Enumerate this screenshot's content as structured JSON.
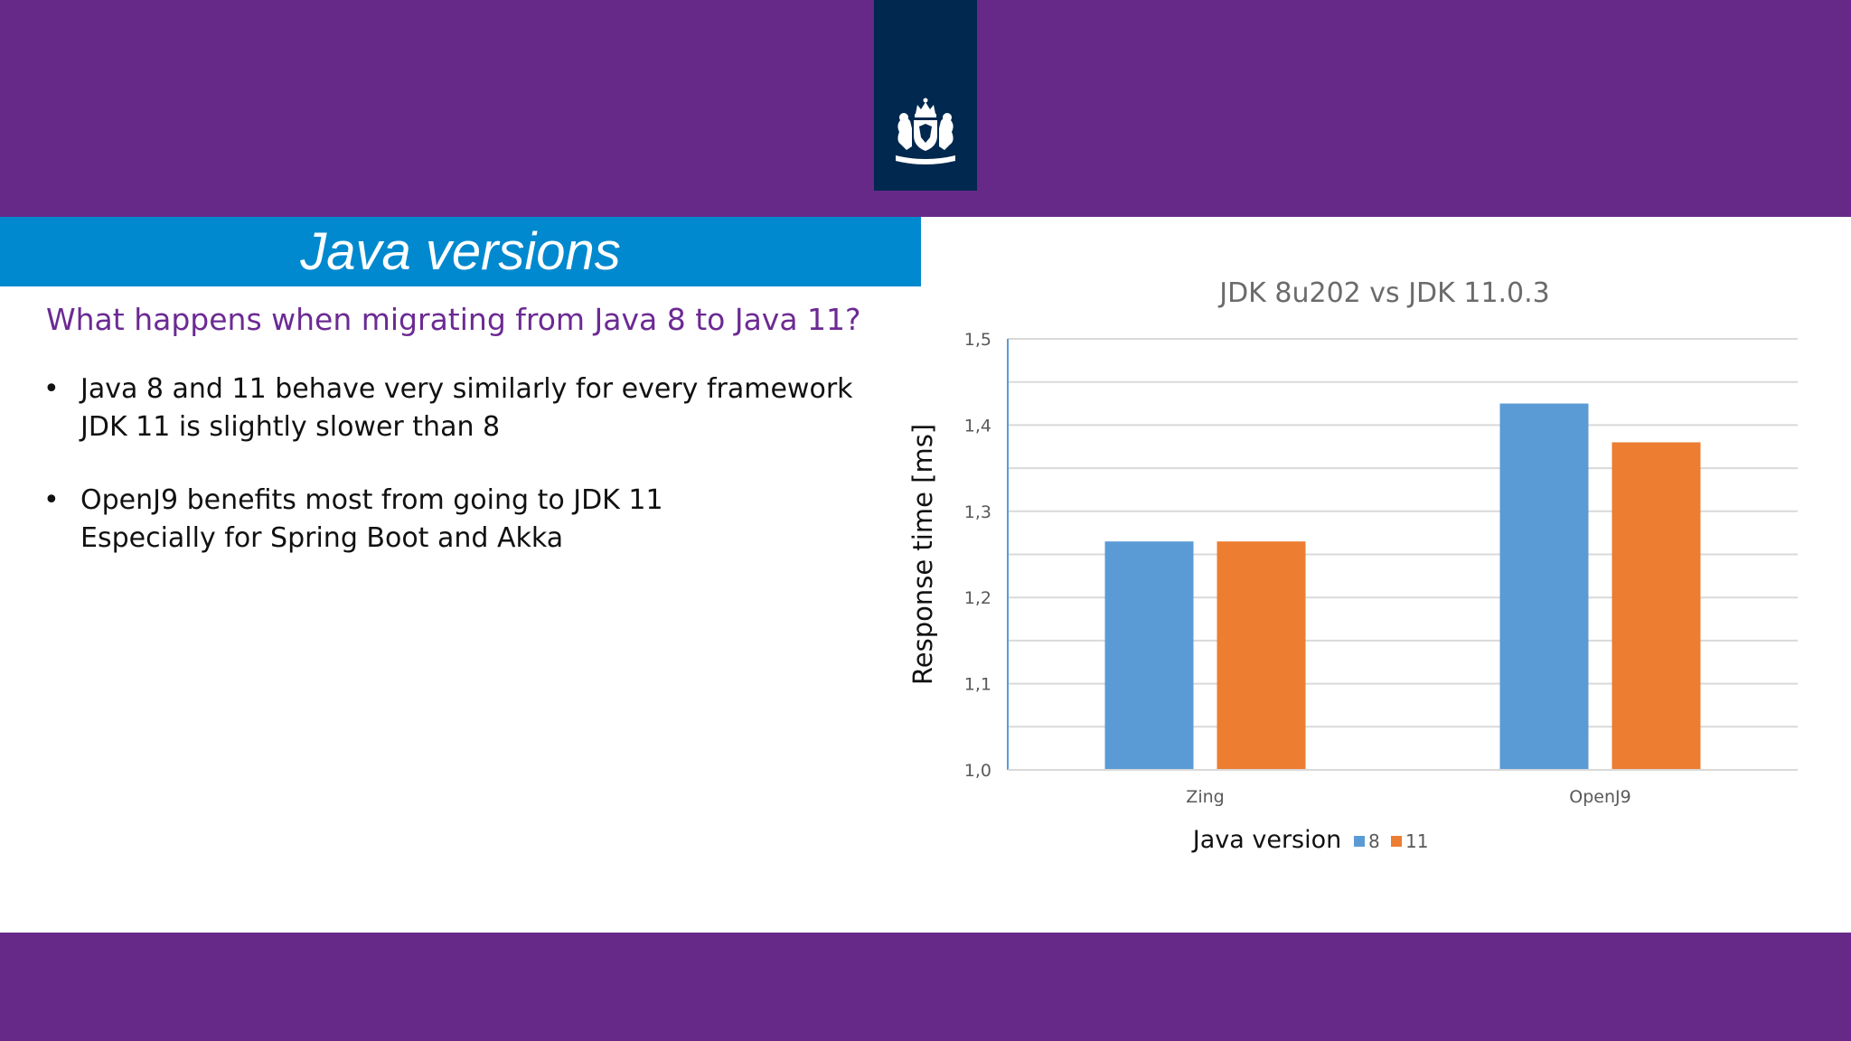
{
  "slide": {
    "title": "Java versions",
    "subtitle": "What happens when migrating from Java 8 to Java 11?",
    "bullets": [
      {
        "marker": "•",
        "lines": [
          "Java 8 and 11 behave very similarly for every framework",
          "JDK 11 is slightly slower than 8"
        ]
      },
      {
        "marker": "•",
        "lines": [
          "OpenJ9 benefits most from going to JDK 11",
          "Especially for Spring Boot and Akka"
        ]
      }
    ],
    "logo": "dutch-royal-coat-of-arms-icon"
  },
  "colors": {
    "band": "#662988",
    "title_bar": "#0089cf",
    "logo_bg": "#01284f",
    "subtitle_text": "#6c2a93",
    "series_8": "#5b9bd5",
    "series_11": "#ed7d31"
  },
  "chart_data": {
    "type": "bar",
    "title": "JDK 8u202 vs JDK 11.0.3",
    "xlabel": "Java version",
    "ylabel": "Response time [ms]",
    "categories": [
      "Zing",
      "OpenJ9"
    ],
    "series": [
      {
        "name": "8",
        "color": "#5b9bd5",
        "values": [
          1.265,
          1.425
        ]
      },
      {
        "name": "11",
        "color": "#ed7d31",
        "values": [
          1.265,
          1.38
        ]
      }
    ],
    "ylim": [
      1.0,
      1.5
    ],
    "yticks": [
      "1,0",
      "1,1",
      "1,2",
      "1,3",
      "1,4",
      "1,5"
    ],
    "grid": true,
    "legend": "bottom"
  }
}
